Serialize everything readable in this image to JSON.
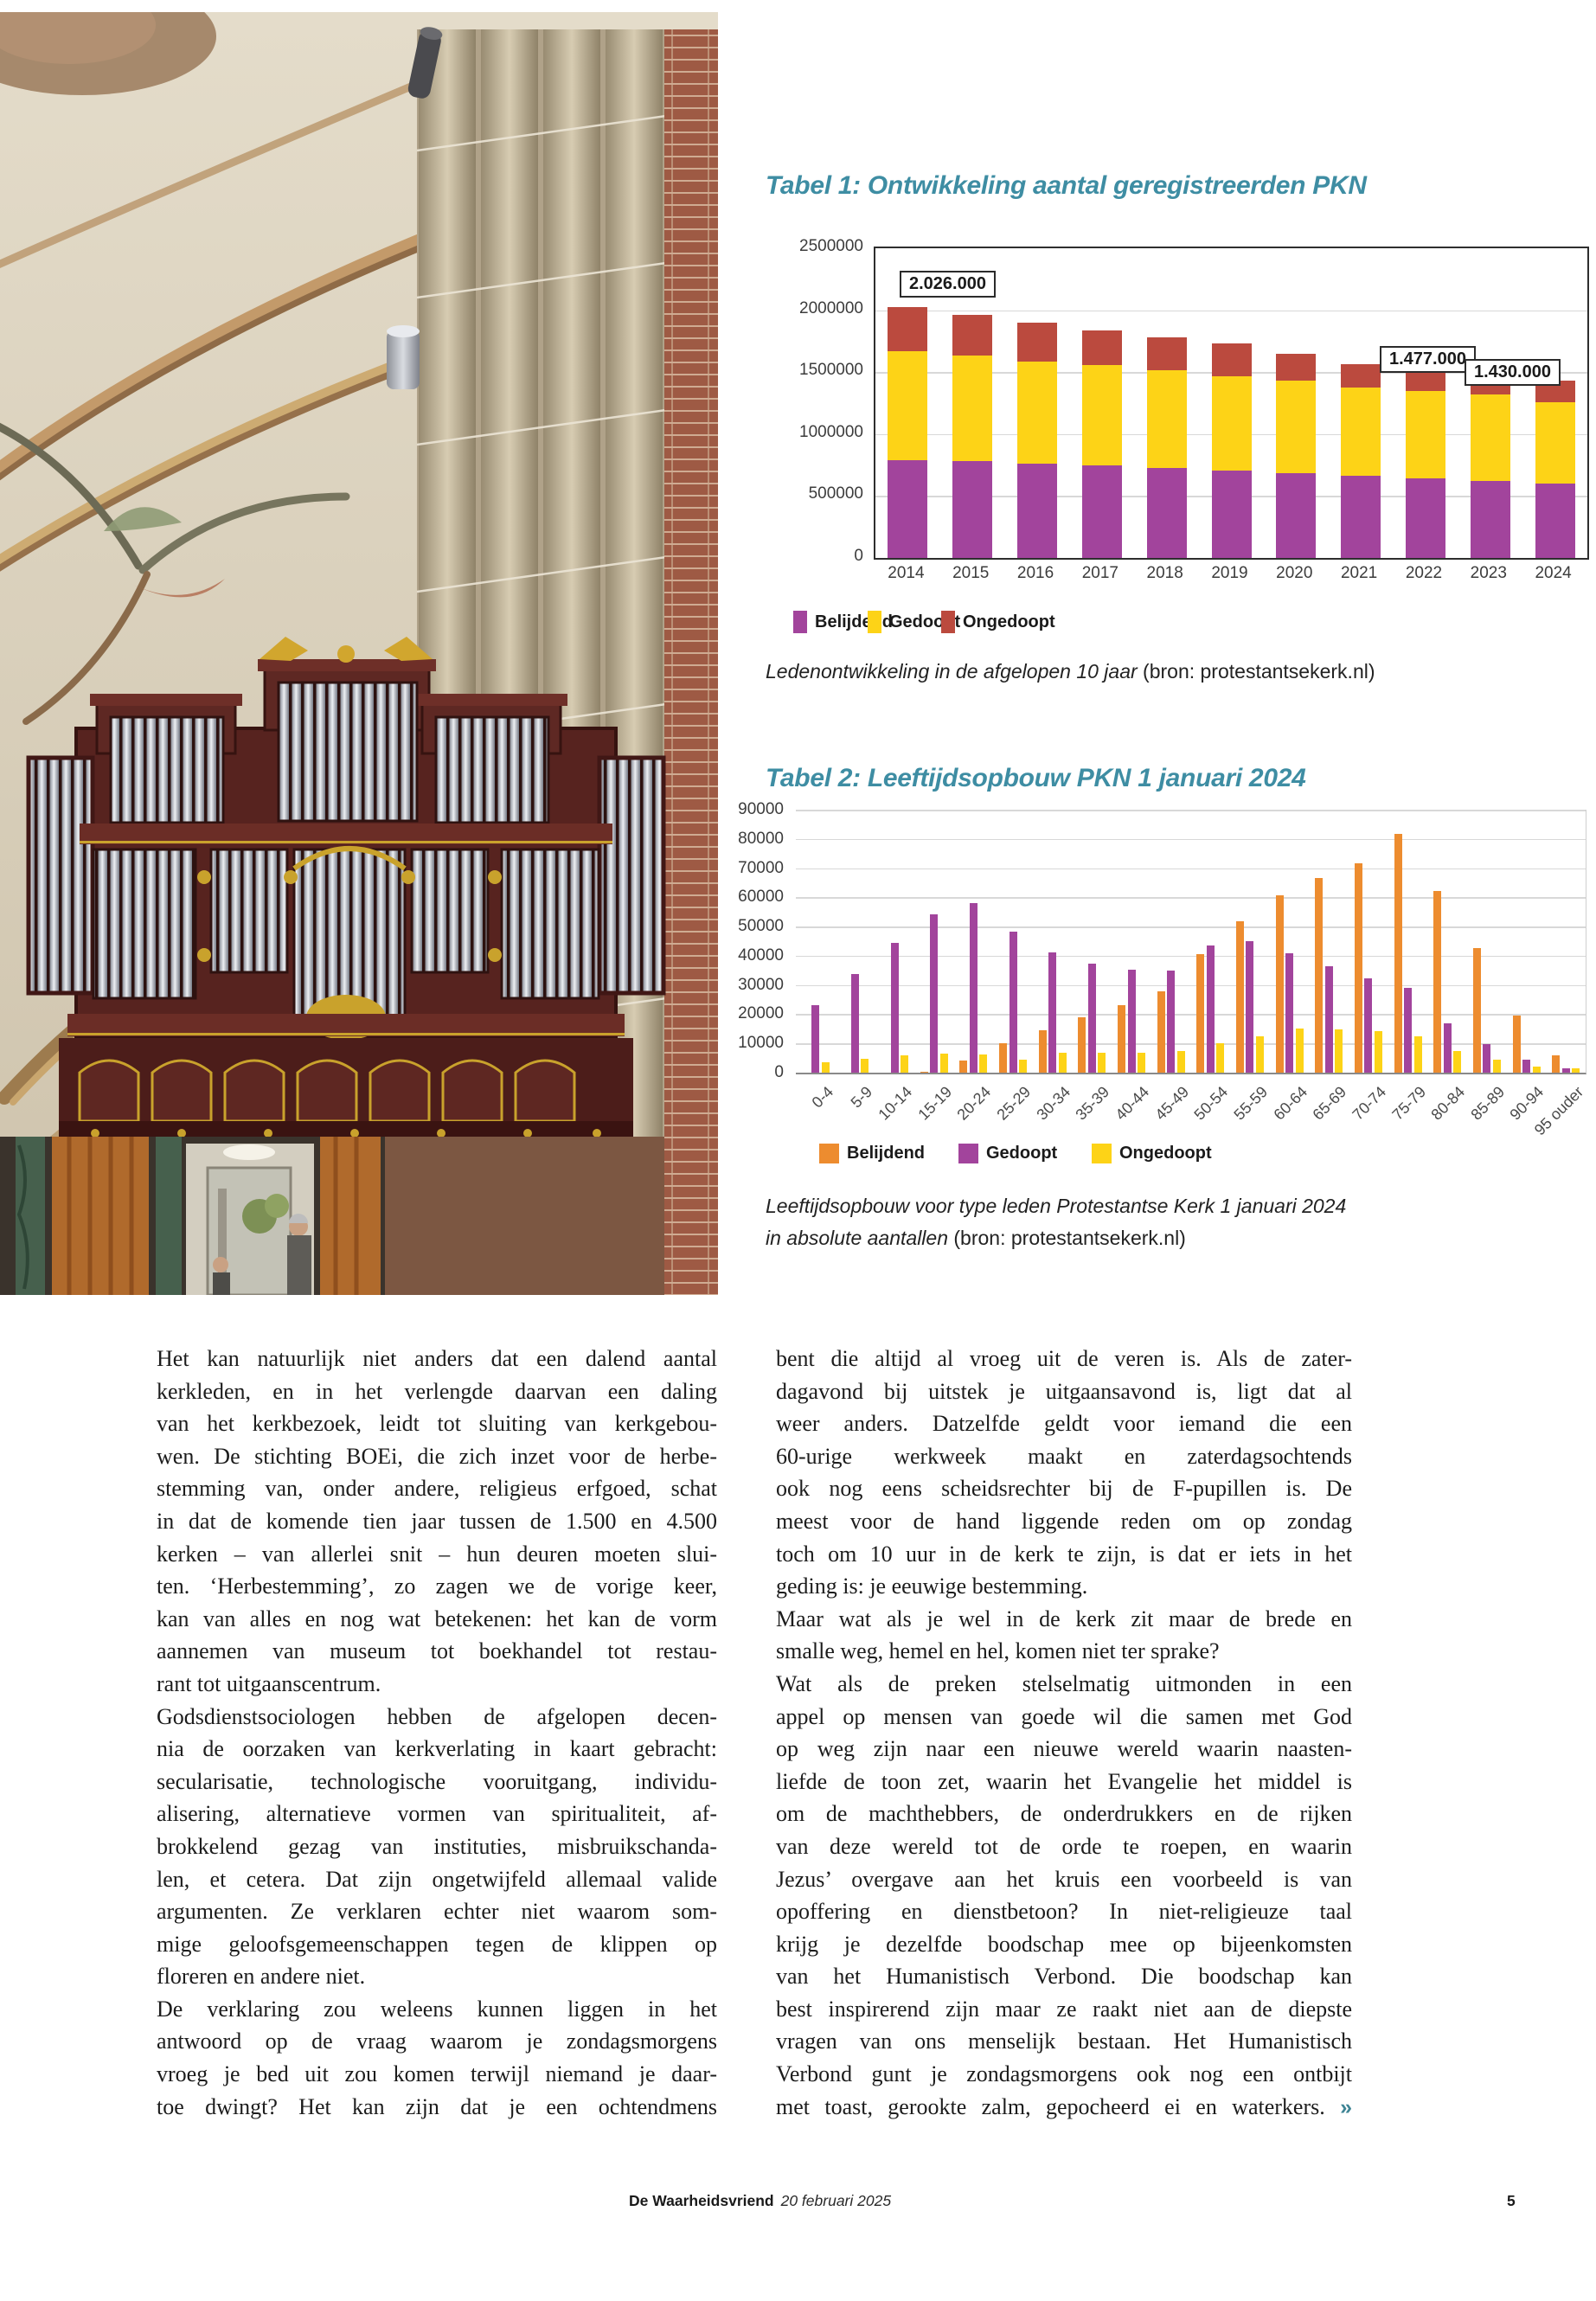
{
  "colors": {
    "accent_teal": "#3e8da3",
    "purple": "#a2449c",
    "yellow": "#fdd317",
    "red": "#bb4a3e",
    "orange": "#ed8c2f"
  },
  "chart_data": [
    {
      "type": "bar",
      "stacked": true,
      "title": "Tabel 1: Ontwikkeling aantal geregistreerden PKN",
      "categories": [
        "2014",
        "2015",
        "2016",
        "2017",
        "2018",
        "2019",
        "2020",
        "2021",
        "2022",
        "2023",
        "2024"
      ],
      "series": [
        {
          "name": "Belijdend",
          "color": "#a2449c",
          "values": [
            790000,
            785000,
            762000,
            745000,
            726000,
            705000,
            686000,
            662000,
            640000,
            620000,
            598000
          ]
        },
        {
          "name": "Gedoopt",
          "color": "#fdd317",
          "values": [
            881000,
            847000,
            821000,
            810000,
            787000,
            764000,
            748000,
            714000,
            705000,
            703000,
            662000
          ]
        },
        {
          "name": "Ongedoopt",
          "color": "#bb4a3e",
          "values": [
            355000,
            330000,
            315000,
            285000,
            270000,
            260000,
            215000,
            190000,
            165000,
            154000,
            170000
          ]
        }
      ],
      "ylim": [
        0,
        2500000
      ],
      "yticks": [
        "2500000",
        "2000000",
        "1500000",
        "1000000",
        "500000",
        "0"
      ],
      "grid": true,
      "legend_position": "bottom",
      "data_labels": [
        {
          "category": "2014",
          "text": "2.026.000"
        },
        {
          "category": "2023",
          "text": "1.477.000"
        },
        {
          "category": "2024",
          "text": "1.430.000"
        }
      ],
      "caption_italic": "Ledenontwikkeling in de afgelopen 10 jaar",
      "caption_source": " (bron: protestantsekerk.nl)"
    },
    {
      "type": "bar",
      "grouped": true,
      "title": "Tabel 2: Leeftijdsopbouw PKN 1 januari 2024",
      "categories": [
        "0-4",
        "5-9",
        "10-14",
        "15-19",
        "20-24",
        "25-29",
        "30-34",
        "35-39",
        "40-44",
        "45-49",
        "50-54",
        "55-59",
        "60-64",
        "65-69",
        "70-74",
        "75-79",
        "80-84",
        "85-89",
        "90-94",
        "95 ouder"
      ],
      "series": [
        {
          "name": "Belijdend",
          "color": "#ed8c2f",
          "values": [
            0,
            0,
            0,
            400,
            4200,
            10000,
            14500,
            19000,
            23000,
            27700,
            40500,
            51900,
            60700,
            66600,
            71600,
            81800,
            62300,
            42700,
            19400,
            5800
          ]
        },
        {
          "name": "Gedoopt",
          "color": "#a2449c",
          "values": [
            23100,
            33700,
            44400,
            54200,
            58100,
            48300,
            41200,
            37300,
            35300,
            34900,
            43600,
            45100,
            40900,
            36400,
            32200,
            29100,
            17000,
            9700,
            4300,
            1500
          ]
        },
        {
          "name": "Ongedoopt",
          "color": "#fdd317",
          "values": [
            3600,
            4600,
            5800,
            6500,
            6200,
            4400,
            6700,
            6700,
            6700,
            7300,
            10000,
            12500,
            15100,
            14900,
            14200,
            12500,
            7500,
            4400,
            2000,
            1600
          ]
        }
      ],
      "ylim": [
        0,
        90000
      ],
      "yticks": [
        "90000",
        "80000",
        "70000",
        "60000",
        "50000",
        "40000",
        "30000",
        "20000",
        "10000",
        "0"
      ],
      "grid": true,
      "legend_position": "bottom",
      "caption_italic_line1": "Leeftijdsopbouw voor type leden Protestantse Kerk 1 januari 2024",
      "caption_italic_line2": "in absolute aantallen",
      "caption_source": " (bron: protestantsekerk.nl)"
    }
  ],
  "article": {
    "column1": {
      "lines": [
        "Het kan natuurlijk niet anders dat een dalend aantal",
        "kerkleden, en in het verlengde daarvan een daling",
        "van het kerkbezoek, leidt tot sluiting van kerkgebou-",
        "wen. De stichting BOEi, die zich inzet voor de herbe-",
        "stemming van, onder andere, religieus erfgoed, schat",
        "in dat de komende tien jaar tussen de 1.500 en 4.500",
        "kerken – van allerlei snit – hun deuren moeten slui-",
        "ten. ‘Herbestemming’, zo zagen we de vorige keer,",
        "kan van alles en nog wat betekenen: het kan de vorm",
        "aannemen van museum tot boekhandel tot restau-",
        "rant tot uitgaanscentrum.",
        "Godsdienstsociologen hebben de afgelopen decen-",
        "nia de oorzaken van kerkverlating in kaart gebracht:",
        "secularisatie, technologische vooruitgang, individu-",
        "alisering, alternatieve vormen van spiritualiteit, af-",
        "brokkelend gezag van instituties, misbruikschanda-",
        "len, et cetera. Dat zijn ongetwijfeld allemaal valide",
        "argumenten. Ze verklaren echter niet waarom som-",
        "mige geloofsgemeenschappen tegen de klippen op",
        "floreren en andere niet.",
        "De verklaring zou weleens kunnen liggen in het",
        "antwoord op de vraag waarom je zondagsmorgens",
        "vroeg je bed uit zou komen terwijl niemand je daar-",
        "toe dwingt? Het kan zijn dat je een ochtendmens"
      ],
      "flush_left_lines": [
        10,
        19
      ]
    },
    "column2": {
      "lines": [
        "bent die altijd al vroeg uit de veren is. Als de zater-",
        "dagavond bij uitstek je uitgaansavond is, ligt dat al",
        "weer anders. Datzelfde geldt voor iemand die een",
        "60-urige werkweek maakt en zaterdagsochtends",
        "ook nog eens scheidsrechter bij de F-pupillen is. De",
        "meest voor de hand liggende reden om op zondag",
        "toch om 10 uur in de kerk te zijn, is dat er iets in het",
        "geding is: je eeuwige bestemming.",
        "Maar wat als je wel in de kerk zit maar de brede en",
        "smalle weg, hemel en hel, komen niet ter sprake?",
        "Wat als de preken stelselmatig uitmonden in een",
        "appel op mensen van goede wil die samen met God",
        "op weg zijn naar een nieuwe wereld waarin naasten-",
        "liefde de toon zet, waarin het Evangelie het middel is",
        "om de machthebbers, de onderdrukkers en de rijken",
        "van deze wereld tot de orde te roepen, en waarin",
        "Jezus’ overgave aan het kruis een voorbeeld is van",
        "opoffering en dienstbetoon? In niet-religieuze taal",
        "krijg je dezelfde boodschap mee op bijeenkomsten",
        "van het Humanistisch Verbond. Die boodschap kan",
        "best inspirerend zijn maar ze raakt niet aan de diepste",
        "vragen van ons menselijk bestaan. Het Humanistisch",
        "Verbond gunt je zondagsmorgens ook nog een ontbijt",
        "met toast, gerookte zalm, gepocheerd ei en waterkers. »"
      ],
      "flush_left_lines": [
        7,
        9
      ]
    }
  },
  "footer": {
    "publication": "De Waarheidsvriend",
    "date": "20 februari 2025",
    "page_number": "5"
  }
}
